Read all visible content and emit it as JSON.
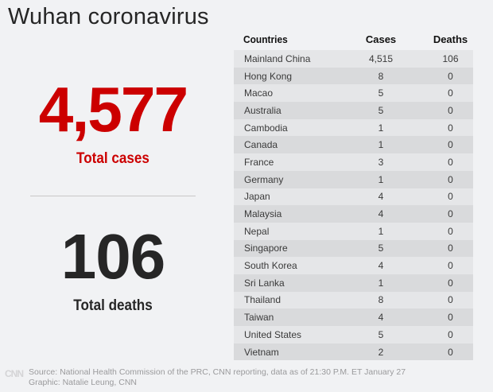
{
  "header": {
    "title": "Wuhan coronavirus"
  },
  "summary": {
    "total_cases_value": "4,577",
    "total_cases_label": "Total cases",
    "total_deaths_value": "106",
    "total_deaths_label": "Total deaths",
    "cases_color": "#cc0000",
    "deaths_color": "#262626"
  },
  "table": {
    "headers": [
      "Countries",
      "Cases",
      "Deaths"
    ],
    "rows": [
      [
        "Mainland China",
        "4,515",
        "106"
      ],
      [
        "Hong Kong",
        "8",
        "0"
      ],
      [
        "Macao",
        "5",
        "0"
      ],
      [
        "Australia",
        "5",
        "0"
      ],
      [
        "Cambodia",
        "1",
        "0"
      ],
      [
        "Canada",
        "1",
        "0"
      ],
      [
        "France",
        "3",
        "0"
      ],
      [
        "Germany",
        "1",
        "0"
      ],
      [
        "Japan",
        "4",
        "0"
      ],
      [
        "Malaysia",
        "4",
        "0"
      ],
      [
        "Nepal",
        "1",
        "0"
      ],
      [
        "Singapore",
        "5",
        "0"
      ],
      [
        "South Korea",
        "4",
        "0"
      ],
      [
        "Sri Lanka",
        "1",
        "0"
      ],
      [
        "Thailand",
        "8",
        "0"
      ],
      [
        "Taiwan",
        "4",
        "0"
      ],
      [
        "United States",
        "5",
        "0"
      ],
      [
        "Vietnam",
        "2",
        "0"
      ]
    ]
  },
  "footer": {
    "logo": "CNN",
    "source": "Source: National Health Commission of the PRC, CNN reporting, data as of 21:30 P.M. ET January 27",
    "credit": "Graphic: Natalie Leung, CNN"
  },
  "chart_data": {
    "type": "table",
    "title": "Wuhan coronavirus",
    "summary": {
      "total_cases": 4577,
      "total_deaths": 106
    },
    "columns": [
      "Countries",
      "Cases",
      "Deaths"
    ],
    "categories": [
      "Mainland China",
      "Hong Kong",
      "Macao",
      "Australia",
      "Cambodia",
      "Canada",
      "France",
      "Germany",
      "Japan",
      "Malaysia",
      "Nepal",
      "Singapore",
      "South Korea",
      "Sri Lanka",
      "Thailand",
      "Taiwan",
      "United States",
      "Vietnam"
    ],
    "series": [
      {
        "name": "Cases",
        "values": [
          4515,
          8,
          5,
          5,
          1,
          1,
          3,
          1,
          4,
          4,
          1,
          5,
          4,
          1,
          8,
          4,
          5,
          2
        ]
      },
      {
        "name": "Deaths",
        "values": [
          106,
          0,
          0,
          0,
          0,
          0,
          0,
          0,
          0,
          0,
          0,
          0,
          0,
          0,
          0,
          0,
          0,
          0
        ]
      }
    ],
    "source": "National Health Commission of the PRC, CNN reporting, data as of 21:30 P.M. ET January 27"
  }
}
